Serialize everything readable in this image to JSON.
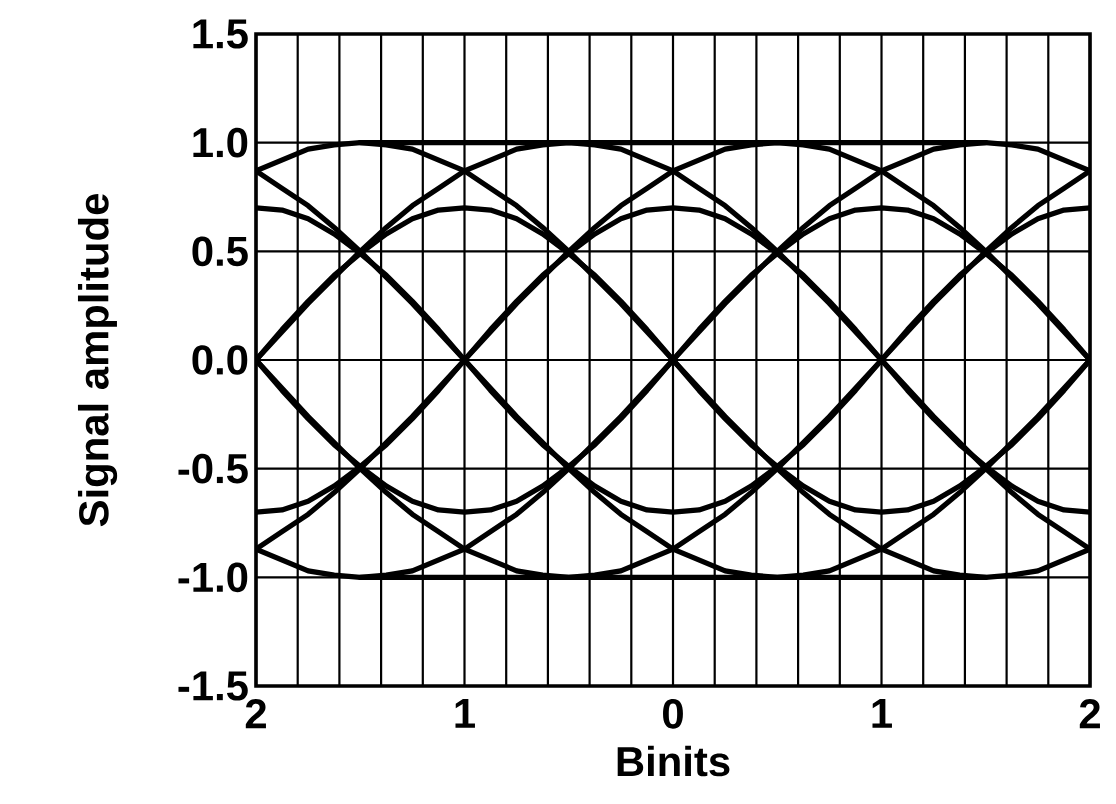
{
  "chart_data": {
    "type": "line",
    "xlabel": "Binits",
    "ylabel": "Signal amplitude",
    "xlim": [
      -2,
      2
    ],
    "ylim": [
      -1.5,
      1.5
    ],
    "xticks": [
      {
        "value": -2,
        "label": "2"
      },
      {
        "value": -1.8,
        "label": null
      },
      {
        "value": -1.6,
        "label": null
      },
      {
        "value": -1.4,
        "label": null
      },
      {
        "value": -1.2,
        "label": null
      },
      {
        "value": -1,
        "label": "1"
      },
      {
        "value": -0.8,
        "label": null
      },
      {
        "value": -0.6,
        "label": null
      },
      {
        "value": -0.4,
        "label": null
      },
      {
        "value": -0.2,
        "label": null
      },
      0,
      {
        "value": 0.2,
        "label": null
      },
      {
        "value": 0.4,
        "label": null
      },
      {
        "value": 0.6,
        "label": null
      },
      {
        "value": 0.8,
        "label": null
      },
      1,
      {
        "value": 1.2,
        "label": null
      },
      {
        "value": 1.4,
        "label": null
      },
      {
        "value": 1.6,
        "label": null
      },
      {
        "value": 1.8,
        "label": null
      },
      2
    ],
    "yticks": [
      -1.5,
      {
        "value": -1,
        "label": "-1.0"
      },
      -0.5,
      {
        "value": 0,
        "label": "0.0"
      },
      0.5,
      {
        "value": 1,
        "label": "1.0"
      },
      1.5
    ],
    "grid": true,
    "marker": "none",
    "line_style": "solid",
    "series": [
      {
        "color": "#000000",
        "x": [
          -2,
          -1.875,
          -1.75,
          -1.625,
          -1.5,
          -1.25,
          -0.75,
          -0.25,
          0.25,
          0.75,
          1.25,
          1.5,
          1.625,
          1.75,
          1.875,
          2
        ],
        "values": [
          0.87,
          0.92,
          0.97,
          0.99,
          1,
          1,
          1,
          1,
          1,
          1,
          1,
          1,
          0.99,
          0.97,
          0.92,
          0.87
        ]
      },
      {
        "color": "#000000",
        "x": [
          -2,
          -1.875,
          -1.75,
          -1.625,
          -1.5,
          -1.25,
          -0.75,
          -0.25,
          0.25,
          0.75,
          1.25,
          1.5,
          1.625,
          1.75,
          1.875,
          2
        ],
        "values": [
          -0.87,
          -0.92,
          -0.97,
          -0.99,
          -1,
          -1,
          -1,
          -1,
          -1,
          -1,
          -1,
          -1,
          -0.99,
          -0.97,
          -0.92,
          -0.87
        ]
      },
      {
        "color": "#000000",
        "x": [
          -2,
          -1.875,
          -1.75,
          -1.625,
          -1.5,
          -1.375,
          -1.25,
          -1.125,
          -1,
          -0.875,
          -0.75,
          -0.625,
          -0.5,
          -0.375,
          -0.25,
          -0.125,
          0,
          0.125,
          0.25,
          0.375,
          0.5,
          0.625,
          0.75,
          0.875,
          1,
          1.125,
          1.25,
          1.375,
          1.5,
          1.625,
          1.75,
          1.875,
          2
        ],
        "values": [
          -0.7,
          -0.69,
          -0.65,
          -0.58,
          -0.49,
          -0.39,
          -0.27,
          -0.14,
          0,
          0.14,
          0.27,
          0.39,
          0.49,
          0.58,
          0.65,
          0.69,
          0.7,
          0.69,
          0.65,
          0.58,
          0.49,
          0.39,
          0.27,
          0.14,
          0,
          -0.14,
          -0.27,
          -0.39,
          -0.49,
          -0.58,
          -0.65,
          -0.69,
          -0.7
        ]
      },
      {
        "color": "#000000",
        "x": [
          -2,
          -1.875,
          -1.75,
          -1.625,
          -1.5,
          -1.375,
          -1.25,
          -1.125,
          -1,
          -0.875,
          -0.75,
          -0.625,
          -0.5,
          -0.375,
          -0.25,
          -0.125,
          0,
          0.125,
          0.25,
          0.375,
          0.5,
          0.625,
          0.75,
          0.875,
          1,
          1.125,
          1.25,
          1.375,
          1.5,
          1.625,
          1.75,
          1.875,
          2
        ],
        "values": [
          0.7,
          0.69,
          0.65,
          0.58,
          0.49,
          0.39,
          0.27,
          0.14,
          0,
          -0.14,
          -0.27,
          -0.39,
          -0.49,
          -0.58,
          -0.65,
          -0.69,
          -0.7,
          -0.69,
          -0.65,
          -0.58,
          -0.49,
          -0.39,
          -0.27,
          -0.14,
          0,
          0.14,
          0.27,
          0.39,
          0.49,
          0.58,
          0.65,
          0.69,
          0.7
        ]
      },
      {
        "color": "#000000",
        "x": [
          -2,
          -1.875,
          -1.75,
          -1.625,
          -1.5,
          -1.375,
          -1.25,
          -1.125,
          -1,
          -0.875,
          -0.75,
          -0.625,
          -0.5,
          -0.375,
          -0.25,
          -0.125,
          0,
          0.125,
          0.25,
          0.375,
          0.5,
          0.625,
          0.75,
          0.875,
          1,
          1.125,
          1.25,
          1.375,
          1.5,
          1.625,
          1.75,
          1.875,
          2
        ],
        "values": [
          0,
          -0.14,
          -0.27,
          -0.39,
          -0.49,
          -0.58,
          -0.65,
          -0.69,
          -0.7,
          -0.69,
          -0.65,
          -0.58,
          -0.49,
          -0.39,
          -0.27,
          -0.14,
          0,
          0.14,
          0.27,
          0.39,
          0.49,
          0.58,
          0.65,
          0.69,
          0.7,
          0.69,
          0.65,
          0.58,
          0.49,
          0.39,
          0.27,
          0.14,
          0
        ]
      },
      {
        "color": "#000000",
        "x": [
          -2,
          -1.875,
          -1.75,
          -1.625,
          -1.5,
          -1.375,
          -1.25,
          -1.125,
          -1,
          -0.875,
          -0.75,
          -0.625,
          -0.5,
          -0.375,
          -0.25,
          -0.125,
          0,
          0.125,
          0.25,
          0.375,
          0.5,
          0.625,
          0.75,
          0.875,
          1,
          1.125,
          1.25,
          1.375,
          1.5
        ],
        "values": [
          0,
          0.14,
          0.27,
          0.39,
          0.49,
          0.58,
          0.65,
          0.69,
          0.7,
          0.69,
          0.65,
          0.58,
          0.49,
          0.39,
          0.27,
          0.14,
          0,
          -0.13,
          -0.26,
          -0.38,
          -0.5,
          -0.61,
          -0.71,
          -0.79,
          -0.87,
          -0.92,
          -0.97,
          -0.99,
          -1
        ]
      },
      {
        "color": "#000000",
        "x": [
          -1.5,
          -1.375,
          -1.25,
          -1.125,
          -1,
          -0.875,
          -0.75,
          -0.625,
          -0.5,
          -0.375,
          -0.25,
          -0.125,
          0,
          0.125,
          0.25,
          0.375,
          0.5,
          0.625,
          0.75,
          0.875,
          1,
          1.125,
          1.25,
          1.375,
          1.5,
          1.625,
          1.75,
          1.875,
          2
        ],
        "values": [
          1,
          0.99,
          0.97,
          0.92,
          0.87,
          0.79,
          0.71,
          0.61,
          0.5,
          0.38,
          0.26,
          0.13,
          0,
          -0.14,
          -0.27,
          -0.39,
          -0.49,
          -0.58,
          -0.65,
          -0.69,
          -0.7,
          -0.69,
          -0.65,
          -0.58,
          -0.49,
          -0.39,
          -0.27,
          -0.14,
          0
        ]
      },
      {
        "color": "#000000",
        "x": [
          -1.5,
          -1.375,
          -1.25,
          -1.125,
          -1,
          -0.875,
          -0.75,
          -0.625,
          -0.5,
          -0.375,
          -0.25,
          -0.125,
          0,
          0.125,
          0.25,
          0.375,
          0.5,
          0.625,
          0.75,
          0.875,
          1,
          1.125,
          1.25,
          1.375,
          1.5
        ],
        "values": [
          -1,
          -0.99,
          -0.97,
          -0.92,
          -0.87,
          -0.79,
          -0.71,
          -0.61,
          -0.5,
          -0.38,
          -0.26,
          -0.13,
          0,
          0.13,
          0.26,
          0.38,
          0.5,
          0.61,
          0.71,
          0.79,
          0.87,
          0.92,
          0.97,
          0.99,
          1
        ]
      },
      {
        "color": "#000000",
        "x": [
          -2,
          -1.875,
          -1.75,
          -1.625,
          -1.5,
          -1.375,
          -1.25,
          -1.125,
          -1,
          -0.875,
          -0.75,
          -0.625,
          -0.5,
          -0.375,
          -0.25,
          -0.125,
          0,
          0.125,
          0.25,
          0.375,
          0.5,
          0.625,
          0.75,
          0.875,
          1,
          1.125,
          1.25,
          1.375,
          1.5,
          1.625,
          1.75,
          1.875,
          2
        ],
        "values": [
          0.87,
          0.79,
          0.71,
          0.61,
          0.5,
          0.38,
          0.26,
          0.13,
          0,
          -0.13,
          -0.26,
          -0.38,
          -0.5,
          -0.61,
          -0.71,
          -0.79,
          -0.87,
          -0.92,
          -0.97,
          -0.99,
          -1,
          -0.99,
          -0.97,
          -0.92,
          -0.87,
          -0.79,
          -0.71,
          -0.61,
          -0.5,
          -0.38,
          -0.26,
          -0.13,
          0
        ]
      },
      {
        "color": "#000000",
        "x": [
          -2,
          -1.875,
          -1.75,
          -1.625,
          -1.5,
          -1.375,
          -1.25,
          -1.125,
          -1,
          -0.875,
          -0.75,
          -0.625,
          -0.5,
          -0.375,
          -0.25,
          -0.125,
          0,
          0.125,
          0.25,
          0.375,
          0.5,
          0.625,
          0.75,
          0.875,
          1,
          1.125,
          1.25,
          1.375,
          1.5,
          1.625,
          1.75,
          1.875,
          2
        ],
        "values": [
          -0.87,
          -0.79,
          -0.71,
          -0.61,
          -0.5,
          -0.38,
          -0.26,
          -0.13,
          0,
          0.13,
          0.26,
          0.38,
          0.5,
          0.61,
          0.71,
          0.79,
          0.87,
          0.92,
          0.97,
          0.99,
          1,
          0.99,
          0.97,
          0.92,
          0.87,
          0.79,
          0.71,
          0.61,
          0.5,
          0.38,
          0.26,
          0.13,
          0
        ]
      },
      {
        "color": "#000000",
        "x": [
          -2,
          -1.875,
          -1.75,
          -1.625,
          -1.5,
          -1.375,
          -1.25,
          -1.125,
          -1,
          -0.875,
          -0.75,
          -0.625,
          -0.5,
          -0.375,
          -0.25,
          -0.125,
          0,
          0.125,
          0.25,
          0.375,
          0.5,
          0.625,
          0.75,
          0.875,
          1,
          1.125,
          1.25,
          1.375,
          1.5,
          1.625,
          1.75,
          1.875,
          2
        ],
        "values": [
          0,
          0.13,
          0.26,
          0.38,
          0.5,
          0.61,
          0.71,
          0.79,
          0.87,
          0.92,
          0.97,
          0.99,
          1,
          0.99,
          0.97,
          0.92,
          0.87,
          0.79,
          0.71,
          0.61,
          0.5,
          0.38,
          0.26,
          0.13,
          0,
          -0.13,
          -0.26,
          -0.38,
          -0.5,
          -0.61,
          -0.71,
          -0.79,
          -0.87
        ]
      },
      {
        "color": "#000000",
        "x": [
          -2,
          -1.875,
          -1.75,
          -1.625,
          -1.5,
          -1.375,
          -1.25,
          -1.125,
          -1,
          -0.875,
          -0.75,
          -0.625,
          -0.5,
          -0.375,
          -0.25,
          -0.125,
          0,
          0.125,
          0.25,
          0.375,
          0.5,
          0.625,
          0.75,
          0.875,
          1,
          1.125,
          1.25,
          1.375,
          1.5,
          1.625,
          1.75,
          1.875,
          2
        ],
        "values": [
          0,
          -0.13,
          -0.26,
          -0.38,
          -0.5,
          -0.61,
          -0.71,
          -0.79,
          -0.87,
          -0.92,
          -0.97,
          -0.99,
          -1,
          -0.99,
          -0.97,
          -0.92,
          -0.87,
          -0.79,
          -0.71,
          -0.61,
          -0.5,
          -0.38,
          -0.26,
          -0.13,
          0,
          0.13,
          0.26,
          0.38,
          0.5,
          0.61,
          0.71,
          0.79,
          0.87
        ]
      }
    ]
  }
}
